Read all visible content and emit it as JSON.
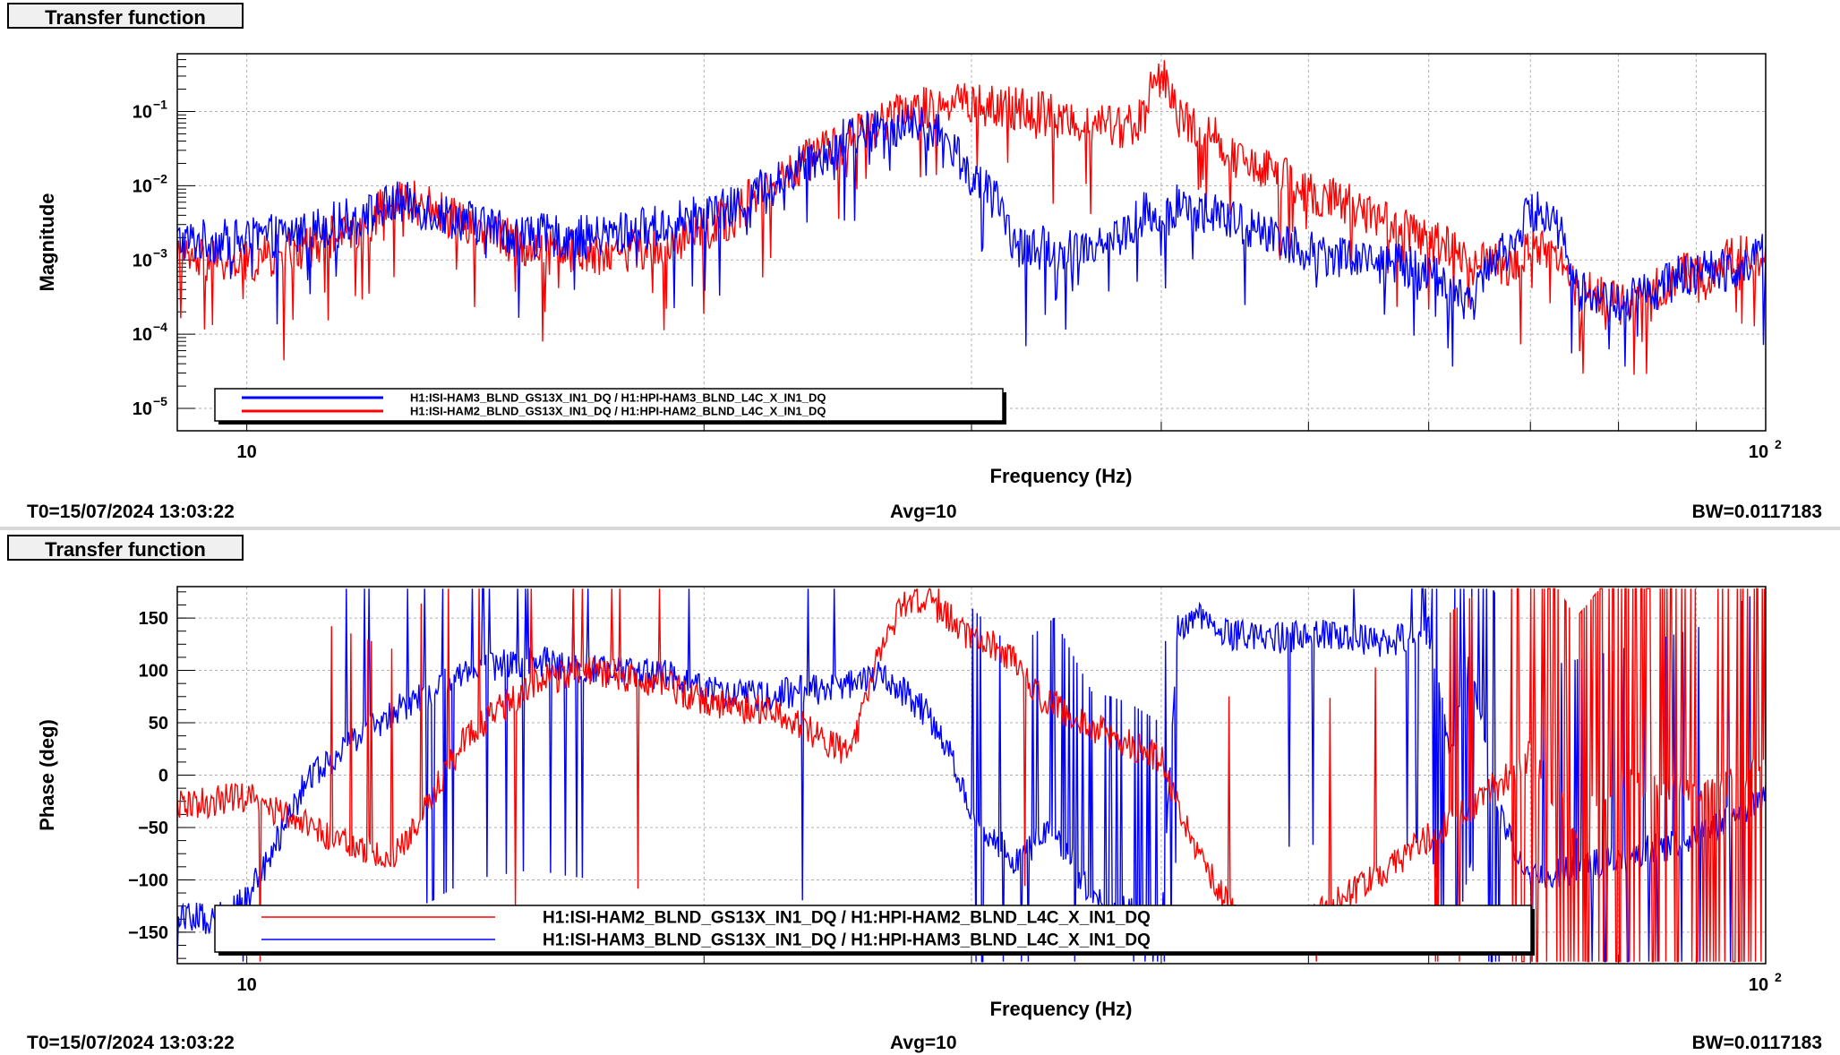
{
  "top_panel": {
    "tab_label": "Transfer function",
    "footer": {
      "t0": "T0=15/07/2024 13:03:22",
      "avg": "Avg=10",
      "bw": "BW=0.0117183"
    }
  },
  "bottom_panel": {
    "tab_label": "Transfer function",
    "footer": {
      "t0": "T0=15/07/2024 13:03:22",
      "avg": "Avg=10",
      "bw": "BW=0.0117183"
    }
  },
  "colors": {
    "red": "#ff0000",
    "blue": "#0000ff",
    "grid": "#c8c8c8"
  },
  "chart_data": [
    {
      "type": "line",
      "title": "",
      "xlabel": "Frequency (Hz)",
      "ylabel": "Magnitude",
      "xscale": "log",
      "yscale": "log",
      "xlim": [
        9,
        100
      ],
      "ylim": [
        5e-06,
        0.6
      ],
      "grid": true,
      "legend_position": "bottom-left",
      "x_ticks": [
        {
          "value": 10,
          "base": "10",
          "exp": ""
        },
        {
          "value": 100,
          "base": "10",
          "exp": "2"
        }
      ],
      "y_ticks": [
        {
          "value": 0.1,
          "base": "10",
          "exp": "−1"
        },
        {
          "value": 0.01,
          "base": "10",
          "exp": "−2"
        },
        {
          "value": 0.001,
          "base": "10",
          "exp": "−3"
        },
        {
          "value": 0.0001,
          "base": "10",
          "exp": "−4"
        },
        {
          "value": 1e-05,
          "base": "10",
          "exp": "−5"
        }
      ],
      "series": [
        {
          "name": "H1:ISI-HAM3_BLND_GS13X_IN1_DQ / H1:HPI-HAM3_BLND_L4C_X_IN1_DQ",
          "color": "#0000ff",
          "x": [
            9,
            10,
            11,
            12,
            12.6,
            13.5,
            15,
            17,
            19,
            21,
            22.5,
            24,
            25.5,
            27,
            28,
            30,
            32,
            35,
            38,
            39,
            40,
            41,
            45,
            50,
            55,
            60,
            64,
            68,
            71,
            75,
            80,
            85,
            88,
            92,
            96,
            100
          ],
          "y": [
            0.0018,
            0.0018,
            0.0025,
            0.004,
            0.006,
            0.004,
            0.0022,
            0.002,
            0.003,
            0.005,
            0.012,
            0.028,
            0.055,
            0.065,
            0.06,
            0.012,
            0.0015,
            0.0014,
            0.0022,
            0.0045,
            0.0022,
            0.0055,
            0.003,
            0.0013,
            0.001,
            0.0007,
            0.0002,
            0.0018,
            0.005,
            0.0004,
            0.00025,
            0.0004,
            0.0006,
            0.0007,
            0.0008,
            0.0013
          ]
        },
        {
          "name": "H1:ISI-HAM2_BLND_GS13X_IN1_DQ / H1:HPI-HAM2_BLND_L4C_X_IN1_DQ",
          "color": "#ff0000",
          "x": [
            9,
            10,
            11,
            12,
            12.6,
            13.5,
            15,
            17,
            19,
            21,
            22.5,
            24,
            25.5,
            27,
            28,
            30,
            32,
            35,
            38,
            39,
            40,
            41,
            45,
            50,
            55,
            60,
            64,
            68,
            71,
            75,
            80,
            85,
            88,
            92,
            96,
            100
          ],
          "y": [
            0.001,
            0.0009,
            0.0015,
            0.003,
            0.007,
            0.004,
            0.0017,
            0.0012,
            0.0015,
            0.004,
            0.012,
            0.028,
            0.05,
            0.09,
            0.12,
            0.13,
            0.11,
            0.075,
            0.06,
            0.09,
            0.33,
            0.08,
            0.02,
            0.008,
            0.004,
            0.0018,
            0.001,
            0.0009,
            0.0016,
            0.0004,
            0.00025,
            0.0004,
            0.0007,
            0.0006,
            0.0012,
            0.001
          ]
        }
      ]
    },
    {
      "type": "line",
      "title": "",
      "xlabel": "Frequency (Hz)",
      "ylabel": "Phase (deg)",
      "xscale": "log",
      "xlim": [
        9,
        100
      ],
      "ylim": [
        -180,
        180
      ],
      "grid": true,
      "legend_position": "bottom-left",
      "x_ticks": [
        {
          "value": 10,
          "base": "10",
          "exp": ""
        },
        {
          "value": 100,
          "base": "10",
          "exp": "2"
        }
      ],
      "y_ticks": [
        150,
        100,
        50,
        0,
        -50,
        -100,
        -150
      ],
      "series": [
        {
          "name": "H1:ISI-HAM2_BLND_GS13X_IN1_DQ / H1:HPI-HAM2_BLND_L4C_X_IN1_DQ",
          "color": "#ff0000",
          "x": [
            9,
            10,
            11,
            12.5,
            14,
            15.5,
            17,
            19,
            20,
            22,
            23,
            25,
            26,
            27,
            28,
            29,
            30,
            31,
            32,
            33,
            35,
            38,
            40,
            42,
            45,
            50,
            55,
            60,
            64,
            68,
            70,
            75,
            80,
            90,
            100
          ],
          "y": [
            -30,
            -20,
            -50,
            -80,
            40,
            90,
            100,
            85,
            70,
            60,
            50,
            20,
            110,
            160,
            170,
            150,
            130,
            125,
            110,
            80,
            55,
            30,
            15,
            -70,
            -140,
            -140,
            -100,
            -60,
            -30,
            0,
            20,
            -50,
            0,
            -20,
            10
          ]
        },
        {
          "name": "H1:ISI-HAM3_BLND_GS13X_IN1_DQ / H1:HPI-HAM3_BLND_L4C_X_IN1_DQ",
          "color": "#0000ff",
          "x": [
            9,
            9.5,
            10,
            11,
            12.5,
            14,
            15.5,
            16,
            17,
            19,
            20,
            22,
            23,
            25,
            26,
            27,
            28,
            29,
            30,
            32,
            34,
            36,
            38,
            40,
            41,
            41.5,
            42,
            44,
            47,
            52,
            56,
            60,
            62,
            64,
            66,
            70,
            80,
            90,
            100
          ],
          "y": [
            -130,
            -140,
            -120,
            0,
            60,
            100,
            110,
            105,
            100,
            95,
            80,
            75,
            80,
            85,
            95,
            80,
            60,
            20,
            -40,
            -80,
            -50,
            -120,
            -130,
            -150,
            150,
            140,
            155,
            135,
            130,
            135,
            125,
            140,
            20,
            120,
            -20,
            -100,
            -80,
            -60,
            -20
          ]
        }
      ]
    }
  ],
  "legends": {
    "top": [
      "H1:ISI-HAM3_BLND_GS13X_IN1_DQ / H1:HPI-HAM3_BLND_L4C_X_IN1_DQ",
      "H1:ISI-HAM2_BLND_GS13X_IN1_DQ / H1:HPI-HAM2_BLND_L4C_X_IN1_DQ"
    ],
    "bottom": [
      "H1:ISI-HAM2_BLND_GS13X_IN1_DQ / H1:HPI-HAM2_BLND_L4C_X_IN1_DQ",
      "H1:ISI-HAM3_BLND_GS13X_IN1_DQ / H1:HPI-HAM3_BLND_L4C_X_IN1_DQ"
    ]
  }
}
